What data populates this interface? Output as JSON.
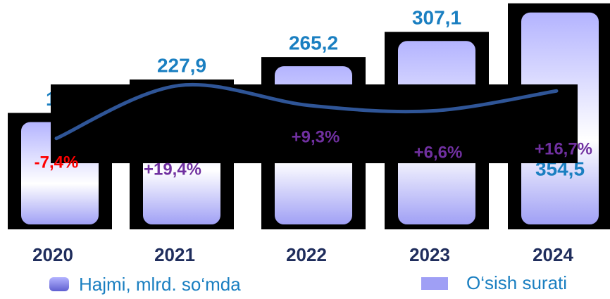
{
  "chart_data": {
    "type": "bar",
    "categories": [
      "2020",
      "2021",
      "2022",
      "2023",
      "2024"
    ],
    "series": [
      {
        "name": "Hajmi, mlrd. so‘mda",
        "color": "#c9c9ff",
        "values": [
          172.4,
          227.9,
          265.2,
          307.1,
          354.5
        ],
        "value_labels": [
          "172,4",
          "227,9",
          "265,2",
          "307,1",
          "354,5"
        ],
        "label_color": "#1a7fc1"
      },
      {
        "name": "O‘sish surati",
        "type": "line",
        "axis": "y2",
        "color": "#2f5597",
        "values": [
          -7.4,
          19.4,
          9.3,
          6.6,
          16.7
        ],
        "value_labels": [
          "-7,4%",
          "+19,4%",
          "+9,3%",
          "+6,6%",
          "+16,7%"
        ],
        "label_color": "#7030a0",
        "negative_color": "#ff0000"
      }
    ],
    "ylim": [
      0,
      360
    ],
    "y2lim": [
      -20,
      20
    ]
  }
}
